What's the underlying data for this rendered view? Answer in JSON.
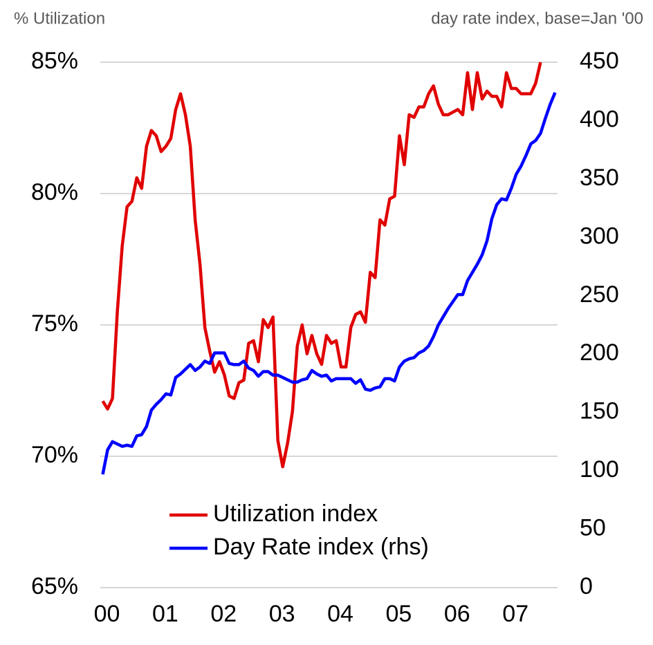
{
  "chart_data": {
    "type": "line",
    "y_label": "% Utilization",
    "y2_label": "day rate index, base=Jan '00",
    "x": [
      0,
      1,
      2,
      3,
      4,
      5,
      6,
      7,
      8,
      9,
      10,
      11,
      12,
      13,
      14,
      15,
      16,
      17,
      18,
      19,
      20,
      21,
      22,
      23,
      24,
      25,
      26,
      27,
      28,
      29,
      30,
      31,
      32,
      33,
      34,
      35,
      36,
      37,
      38,
      39,
      40,
      41,
      42,
      43,
      44,
      45,
      46,
      47,
      48,
      49,
      50,
      51,
      52,
      53,
      54,
      55,
      56,
      57,
      58,
      59,
      60,
      61,
      62,
      63,
      64,
      65,
      66,
      67,
      68,
      69,
      70,
      71,
      72,
      73,
      74,
      75,
      76,
      77,
      78,
      79,
      80,
      81,
      82,
      83,
      84,
      85,
      86,
      87,
      88,
      89,
      90,
      91,
      92,
      93
    ],
    "xlim": [
      -0.5,
      93.5
    ],
    "xticks": [
      {
        "value": 0,
        "label": "00"
      },
      {
        "value": 12,
        "label": "01"
      },
      {
        "value": 24,
        "label": "02"
      },
      {
        "value": 36,
        "label": "03"
      },
      {
        "value": 48,
        "label": "04"
      },
      {
        "value": 60,
        "label": "05"
      },
      {
        "value": 72,
        "label": "06"
      },
      {
        "value": 84,
        "label": "07"
      }
    ],
    "ylim": [
      65,
      85
    ],
    "yticks": [
      {
        "value": 65,
        "label": "65%"
      },
      {
        "value": 70,
        "label": "70%"
      },
      {
        "value": 75,
        "label": "75%"
      },
      {
        "value": 80,
        "label": "80%"
      },
      {
        "value": 85,
        "label": "85%"
      }
    ],
    "y2lim": [
      0,
      450
    ],
    "y2ticks": [
      0,
      50,
      100,
      150,
      200,
      250,
      300,
      350,
      400,
      450
    ],
    "grid": true,
    "legend": "bottom",
    "series": [
      {
        "name": "Utilization index",
        "color": "#e00000",
        "values": [
          72.1,
          71.8,
          72.2,
          75.5,
          78,
          79.5,
          79.7,
          80.6,
          80.2,
          81.8,
          82.4,
          82.2,
          81.6,
          81.8,
          82.1,
          83.2,
          83.8,
          83,
          81.8,
          79,
          77.3,
          74.9,
          74,
          73.2,
          73.6,
          73.1,
          72.3,
          72.2,
          72.8,
          72.9,
          74.3,
          74.4,
          73.6,
          75.2,
          74.9,
          75.3,
          70.6,
          69.6,
          70.5,
          71.7,
          74.2,
          75,
          73.9,
          74.6,
          73.9,
          73.5,
          74.6,
          74.3,
          74.4,
          73.4,
          73.4,
          74.9,
          75.4,
          75.5,
          75.1,
          77,
          76.8,
          79,
          78.8,
          79.8,
          79.9,
          82.2,
          81.1,
          83,
          82.9,
          83.3,
          83.3,
          83.8,
          84.1,
          83.4,
          83,
          83,
          83.1,
          83.2,
          83,
          84.6,
          83.2,
          84.6,
          83.6,
          83.9,
          83.7,
          83.7,
          83.3,
          84.6,
          84,
          84,
          83.8,
          83.8,
          83.8,
          84.2,
          85,
          null,
          null,
          null
        ]
      },
      {
        "name": "Day Rate index (rhs)",
        "color": "#0000ff",
        "axis": "y2",
        "values": [
          97,
          118,
          125,
          123,
          121,
          122,
          121,
          130,
          131,
          138,
          152,
          157,
          161,
          166,
          165,
          180,
          183,
          187,
          191,
          186,
          189,
          194,
          192,
          201,
          201,
          201,
          192,
          191,
          191,
          194,
          188,
          186,
          181,
          185,
          185,
          182,
          182,
          180,
          178,
          176,
          176,
          178,
          179,
          186,
          183,
          181,
          182,
          177,
          179,
          179,
          179,
          179,
          175,
          178,
          170,
          169,
          171,
          172,
          179,
          179,
          177,
          189,
          194,
          196,
          197,
          201,
          203,
          207,
          215,
          225,
          232,
          239,
          245,
          251,
          251,
          263,
          270,
          277,
          285,
          297,
          316,
          328,
          333,
          332,
          342,
          354,
          361,
          370,
          380,
          383,
          389,
          402,
          414,
          424
        ]
      }
    ]
  }
}
